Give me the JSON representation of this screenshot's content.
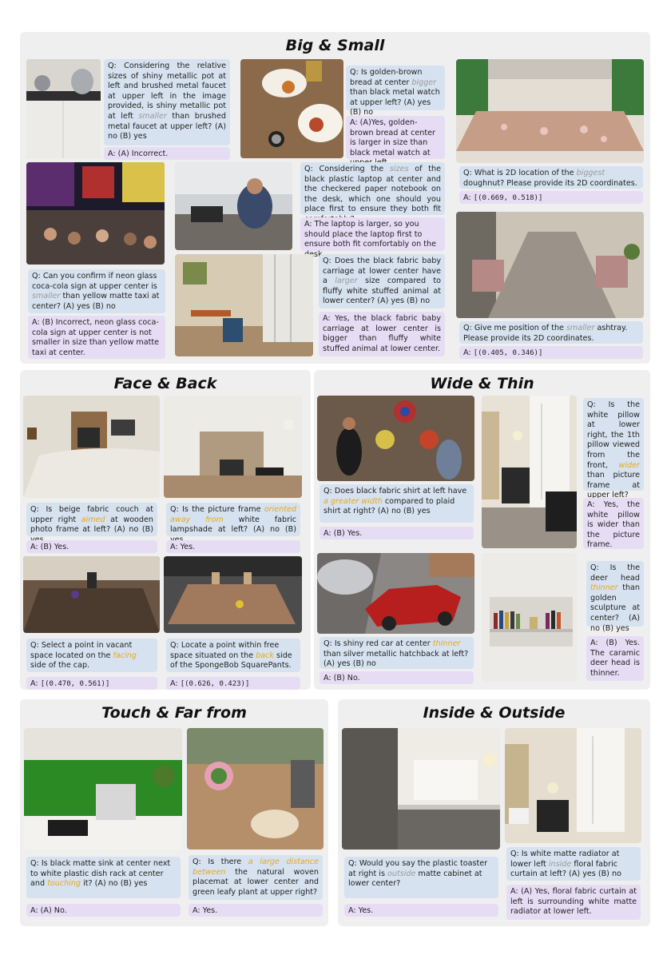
{
  "colors": {
    "panel": "#efefef",
    "question_bg": "#d6e2ef",
    "answer_bg": "#e6ddf5",
    "highlight_gray": "#9a9a9a",
    "highlight_orange": "#e8a81c"
  },
  "big_small": {
    "title": "Big & Small",
    "q1": [
      "Q: Considering the relative sizes of shiny metallic pot at left and brushed metal faucet at upper left in the image provided, is shiny metallic pot at left ",
      "smaller",
      " than brushed metal faucet at upper left? (A) no (B) yes"
    ],
    "a1": "A: (A) Incorrect.",
    "q2": [
      "Q: Is golden-brown bread at center ",
      "bigger",
      " than black metal watch at upper left? (A) yes (B) no"
    ],
    "a2": "A: (A)Yes, golden-brown bread at center is larger in size than black metal watch at upper left.",
    "q3": [
      "Q: What is 2D location of the ",
      "biggest",
      " doughnut? Please provide its 2D coordinates."
    ],
    "a3": [
      "A: ",
      "[(0.669, 0.518)]"
    ],
    "q4": [
      "Q: Considering the ",
      "sizes",
      " of the black plastic laptop at center and the checkered paper notebook on the desk, which one should you place first to ensure they both fit comfortably?"
    ],
    "a4": "A: The laptop is larger, so you should place the laptop first to ensure both fit comfortably on the desk.",
    "q5": [
      "Q: Can you confirm if neon glass coca-cola sign at upper center is ",
      "smaller",
      " than yellow matte taxi at center? (A) yes (B) no"
    ],
    "a5": "A: (B) Incorrect, neon glass coca-cola sign at upper center is not smaller in size than yellow matte taxi at center.",
    "q6": [
      "Q: Does the black fabric baby carriage at lower center have a ",
      "larger",
      " size compared to fluffy white stuffed animal at lower center? (A) yes (B) no"
    ],
    "a6": "A: Yes, the black fabric baby carriage at lower center is bigger than fluffy white stuffed animal at lower center.",
    "q7": [
      "Q: Give me position of the ",
      "smaller",
      " ashtray. Please provide its 2D coordinates."
    ],
    "a7": [
      "A: ",
      "[(0.405, 0.346)]"
    ]
  },
  "face_back": {
    "title": "Face & Back",
    "q1": [
      "Q: Is beige fabric couch at upper right ",
      "aimed",
      " at wooden photo frame at left? (A) no (B) yes"
    ],
    "a1": "A: (B) Yes.",
    "q2": [
      "Q: Is the picture frame ",
      "oriented away from",
      " white fabric lampshade at left? (A) no (B) yes"
    ],
    "a2": "A: Yes.",
    "q3": [
      "Q: Select a point in vacant space located on the ",
      "facing",
      " side of the cap."
    ],
    "a3": [
      "A: ",
      "[(0.470, 0.561)]"
    ],
    "q4": [
      "Q: Locate a point within free space situated on the ",
      "back",
      " side of the SpongeBob SquarePants."
    ],
    "a4": [
      "A: ",
      "[(0.626, 0.423)]"
    ]
  },
  "wide_thin": {
    "title": "Wide & Thin",
    "q1": [
      "Q: Does black fabric shirt at left have ",
      "a greater width",
      " compared to plaid shirt at right? (A) no (B) yes"
    ],
    "a1": "A: (B) Yes.",
    "q2": [
      "Q: Is the white pillow at lower right, the 1th pillow viewed from the front, ",
      "wider",
      " than picture frame at upper left?"
    ],
    "a2": "A: Yes, the white pillow is wider than the picture frame.",
    "q3": [
      "Q: Is shiny red car at center ",
      "thinner",
      " than silver metallic hatchback at left? (A) yes (B) no"
    ],
    "a3": "A: (B) No.",
    "q4": [
      "Q: Is the deer head ",
      "thinner",
      " than golden sculpture at center? (A) no (B) yes"
    ],
    "a4": "A: (B) Yes. The caramic deer head is thinner."
  },
  "touch_far": {
    "title": "Touch & Far from",
    "q1": [
      "Q: Is black matte sink at center next to white plastic dish rack at center and ",
      "touching",
      " it? (A) no (B) yes"
    ],
    "a1": "A: (A) No.",
    "q2": [
      "Q: Is there ",
      "a large distance between",
      " the natural woven placemat at lower center and green leafy plant at upper right?"
    ],
    "a2": "A: Yes."
  },
  "inside_outside": {
    "title": "Inside & Outside",
    "q1": [
      "Q: Would you say the plastic toaster at right is ",
      "outside",
      " matte cabinet at lower center?"
    ],
    "a1": "A: Yes.",
    "q2": [
      "Q: Is white matte radiator at lower left ",
      "inside",
      " floral fabric curtain at left? (A) yes (B) no"
    ],
    "a2": "A: (A) Yes, floral fabric curtain at left is surrounding white matte radiator at lower left."
  }
}
